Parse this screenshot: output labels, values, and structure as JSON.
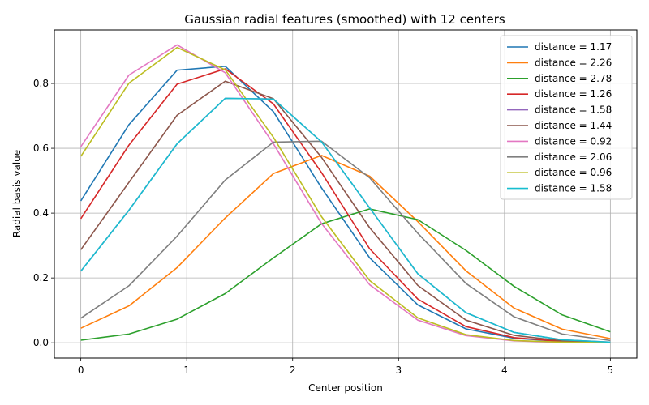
{
  "chart_data": {
    "type": "line",
    "title": "Gaussian radial features (smoothed) with 12 centers",
    "xlabel": "Center position",
    "ylabel": "Radial basis value",
    "xlim": [
      -0.25,
      5.25
    ],
    "ylim": [
      -0.047,
      0.965
    ],
    "xticks": [
      0,
      1,
      2,
      3,
      4,
      5
    ],
    "yticks": [
      0.0,
      0.2,
      0.4,
      0.6,
      0.8
    ],
    "grid": true,
    "legend_position": "top-right",
    "x": [
      0,
      0.4545,
      0.9091,
      1.3636,
      1.8182,
      2.2727,
      2.7273,
      3.1818,
      3.6364,
      4.0909,
      4.5455,
      5.0
    ],
    "series": [
      {
        "name": "distance = 1.17",
        "color": "#1f77b4",
        "values": [
          0.438,
          0.673,
          0.841,
          0.853,
          0.713,
          0.478,
          0.262,
          0.117,
          0.043,
          0.014,
          0.004,
          0.001
        ]
      },
      {
        "name": "distance = 2.26",
        "color": "#ff7f0e",
        "values": [
          0.045,
          0.114,
          0.232,
          0.385,
          0.522,
          0.578,
          0.514,
          0.374,
          0.222,
          0.107,
          0.042,
          0.013
        ]
      },
      {
        "name": "distance = 2.78",
        "color": "#2ca02c",
        "values": [
          0.008,
          0.027,
          0.073,
          0.152,
          0.262,
          0.367,
          0.413,
          0.38,
          0.285,
          0.174,
          0.086,
          0.034
        ]
      },
      {
        "name": "distance = 1.26",
        "color": "#d62728",
        "values": [
          0.383,
          0.61,
          0.798,
          0.845,
          0.737,
          0.525,
          0.29,
          0.135,
          0.05,
          0.016,
          0.004,
          0.001
        ]
      },
      {
        "name": "distance = 1.58",
        "color": "#9467bd",
        "values": [
          0.221,
          0.409,
          0.614,
          0.754,
          0.752,
          0.62,
          0.416,
          0.213,
          0.093,
          0.032,
          0.009,
          0.002
        ]
      },
      {
        "name": "distance = 1.44",
        "color": "#8c564b",
        "values": [
          0.287,
          0.495,
          0.702,
          0.807,
          0.753,
          0.572,
          0.355,
          0.177,
          0.07,
          0.023,
          0.006,
          0.001
        ]
      },
      {
        "name": "distance = 0.92",
        "color": "#e377c2",
        "values": [
          0.605,
          0.826,
          0.919,
          0.833,
          0.614,
          0.368,
          0.179,
          0.07,
          0.022,
          0.006,
          0.001,
          0.0
        ]
      },
      {
        "name": "distance = 2.06",
        "color": "#7f7f7f",
        "values": [
          0.076,
          0.176,
          0.329,
          0.502,
          0.619,
          0.622,
          0.509,
          0.338,
          0.183,
          0.08,
          0.027,
          0.007
        ]
      },
      {
        "name": "distance = 0.96",
        "color": "#bcbd22",
        "values": [
          0.575,
          0.801,
          0.911,
          0.842,
          0.634,
          0.389,
          0.192,
          0.077,
          0.025,
          0.007,
          0.002,
          0.0
        ]
      },
      {
        "name": "distance = 1.58",
        "color": "#17becf",
        "values": [
          0.221,
          0.409,
          0.614,
          0.754,
          0.752,
          0.62,
          0.416,
          0.213,
          0.093,
          0.032,
          0.009,
          0.002
        ]
      }
    ]
  }
}
